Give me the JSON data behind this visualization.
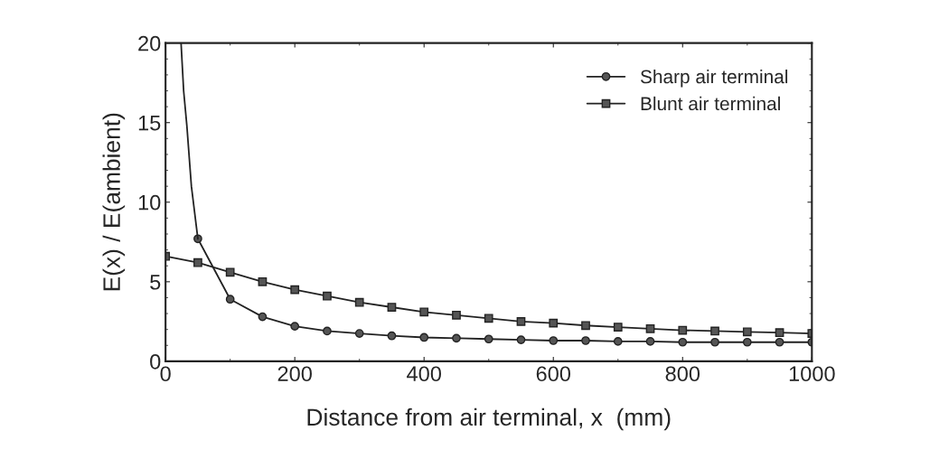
{
  "chart_data": {
    "type": "line",
    "xlabel": "Distance from air terminal, x  (mm)",
    "ylabel": "E(x) / E(ambient)",
    "xlim": [
      0,
      1000
    ],
    "ylim": [
      0,
      20
    ],
    "xticks": [
      0,
      200,
      400,
      600,
      800,
      1000
    ],
    "yticks": [
      0,
      5,
      10,
      15,
      20
    ],
    "grid": false,
    "legend": "top right",
    "series": [
      {
        "name": "Sharp air terminal",
        "color": "#222222",
        "marker": "circle",
        "x": [
          50,
          100,
          150,
          200,
          250,
          300,
          350,
          400,
          450,
          500,
          550,
          600,
          650,
          700,
          750,
          800,
          850,
          900,
          950,
          1000
        ],
        "values": [
          7.7,
          3.9,
          2.8,
          2.2,
          1.9,
          1.75,
          1.6,
          1.5,
          1.45,
          1.4,
          1.35,
          1.3,
          1.3,
          1.25,
          1.25,
          1.2,
          1.2,
          1.2,
          1.2,
          1.2
        ]
      },
      {
        "name": "Blunt air terminal",
        "color": "#222222",
        "marker": "square",
        "x": [
          0,
          50,
          100,
          150,
          200,
          250,
          300,
          350,
          400,
          450,
          500,
          550,
          600,
          650,
          700,
          750,
          800,
          850,
          900,
          950,
          1000
        ],
        "values": [
          6.6,
          6.2,
          5.6,
          5.0,
          4.5,
          4.1,
          3.7,
          3.4,
          3.1,
          2.9,
          2.7,
          2.5,
          2.4,
          2.25,
          2.15,
          2.05,
          1.95,
          1.9,
          1.85,
          1.8,
          1.75
        ]
      },
      {
        "color": "#222222",
        "marker": "none",
        "x": [
          24,
          28,
          33,
          40,
          50
        ],
        "values": [
          20,
          17,
          14.8,
          11,
          7.7
        ]
      }
    ]
  }
}
